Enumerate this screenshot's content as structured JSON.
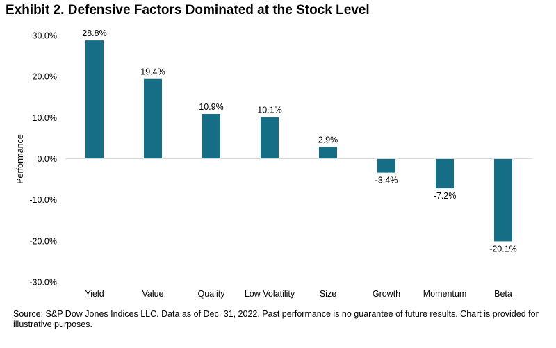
{
  "title": "Exhibit 2. Defensive Factors Dominated at the Stock Level",
  "source": "Source: S&P Dow Jones Indices LLC. Data as of Dec. 31, 2022. Past performance is no guarantee of future results. Chart is provided for illustrative purposes.",
  "chart_data": {
    "type": "bar",
    "title": "Exhibit 2. Defensive Factors Dominated at the Stock Level",
    "xlabel": "",
    "ylabel": "Performance",
    "categories": [
      "Yield",
      "Value",
      "Quality",
      "Low Volatility",
      "Size",
      "Growth",
      "Momentum",
      "Beta"
    ],
    "values": [
      28.8,
      19.4,
      10.9,
      10.1,
      2.9,
      -3.4,
      -7.2,
      -20.1
    ],
    "data_labels": [
      "28.8%",
      "19.4%",
      "10.9%",
      "10.1%",
      "2.9%",
      "-3.4%",
      "-7.2%",
      "-20.1%"
    ],
    "ylim": [
      -30,
      30
    ],
    "yticks": [
      30,
      20,
      10,
      0,
      -10,
      -20,
      -30
    ],
    "ytick_labels": [
      "30.0%",
      "20.0%",
      "10.0%",
      "0.0%",
      "-10.0%",
      "-20.0%",
      "-30.0%"
    ],
    "grid": false,
    "legend": "none",
    "bar_color": "#156D86",
    "axis_color": "#D9D9D9"
  }
}
